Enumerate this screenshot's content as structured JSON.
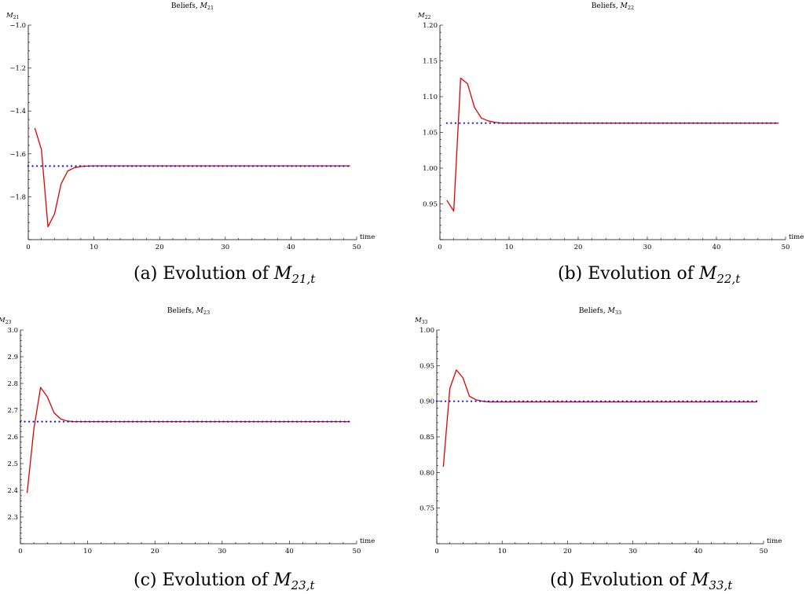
{
  "figure": {
    "panels": [
      {
        "caption_prefix": "(a) Evolution of ",
        "caption_symbol": "M",
        "caption_subscript": "21,t"
      },
      {
        "caption_prefix": "(b) Evolution of ",
        "caption_symbol": "M",
        "caption_subscript": "22,t"
      },
      {
        "caption_prefix": "(c) Evolution of ",
        "caption_symbol": "M",
        "caption_subscript": "23,t"
      },
      {
        "caption_prefix": "(d) Evolution of ",
        "caption_symbol": "M",
        "caption_subscript": "33,t"
      }
    ]
  },
  "colors": {
    "belief_line": "#e00000",
    "reference_line": "#1010e0",
    "axis": "#000000"
  },
  "chart_data": [
    {
      "type": "line",
      "title_prefix": "Beliefs, ",
      "title_symbol": "M",
      "title_subscript": "21",
      "ylabel_symbol": "M",
      "ylabel_subscript": "21",
      "xlabel": "time",
      "xlim": [
        0,
        50
      ],
      "ylim": [
        -2.0,
        -1.0
      ],
      "xticks": [
        0,
        10,
        20,
        30,
        40,
        50
      ],
      "xtick_labels": [
        "0",
        "10",
        "20",
        "30",
        "40",
        "50"
      ],
      "yticks": [
        -1.8,
        -1.6,
        -1.4,
        -1.2,
        -1.0
      ],
      "ytick_labels": [
        "−1.8",
        "−1.6",
        "−1.4",
        "−1.2",
        "−1.0"
      ],
      "series": [
        {
          "style": "solid",
          "color": "#e00000",
          "x": [
            1,
            2,
            3,
            4,
            5,
            6,
            7,
            8,
            9,
            10,
            15,
            20,
            30,
            40,
            49
          ],
          "y": [
            -1.48,
            -1.58,
            -1.94,
            -1.88,
            -1.74,
            -1.68,
            -1.665,
            -1.659,
            -1.657,
            -1.656,
            -1.656,
            -1.656,
            -1.656,
            -1.656,
            -1.656
          ]
        },
        {
          "style": "dotted",
          "color": "#1010e0",
          "x": [
            0,
            49
          ],
          "y": [
            -1.657,
            -1.657
          ]
        }
      ]
    },
    {
      "type": "line",
      "title_prefix": "Beliefs, ",
      "title_symbol": "M",
      "title_subscript": "22",
      "ylabel_symbol": "M",
      "ylabel_subscript": "22",
      "xlabel": "time",
      "xlim": [
        0,
        50
      ],
      "ylim": [
        0.9,
        1.2
      ],
      "xticks": [
        0,
        10,
        20,
        30,
        40,
        50
      ],
      "xtick_labels": [
        "0",
        "10",
        "20",
        "30",
        "40",
        "50"
      ],
      "yticks": [
        0.95,
        1.0,
        1.05,
        1.1,
        1.15,
        1.2
      ],
      "ytick_labels": [
        "0.95",
        "1.00",
        "1.05",
        "1.10",
        "1.15",
        "1.20"
      ],
      "series": [
        {
          "style": "solid",
          "color": "#e00000",
          "x": [
            1,
            2,
            3,
            4,
            5,
            6,
            7,
            8,
            9,
            10,
            20,
            30,
            40,
            49
          ],
          "y": [
            0.955,
            0.94,
            1.126,
            1.118,
            1.085,
            1.07,
            1.066,
            1.064,
            1.063,
            1.063,
            1.063,
            1.063,
            1.063,
            1.063
          ]
        },
        {
          "style": "dotted",
          "color": "#1010e0",
          "x": [
            1,
            49
          ],
          "y": [
            1.063,
            1.063
          ]
        }
      ]
    },
    {
      "type": "line",
      "title_prefix": "Beliefs, ",
      "title_symbol": "M",
      "title_subscript": "23",
      "ylabel_symbol": "M",
      "ylabel_subscript": "23",
      "xlabel": "time",
      "xlim": [
        0,
        50
      ],
      "ylim": [
        2.2,
        3.0
      ],
      "xticks": [
        0,
        10,
        20,
        30,
        40,
        50
      ],
      "xtick_labels": [
        "0",
        "10",
        "20",
        "30",
        "40",
        "50"
      ],
      "yticks": [
        2.3,
        2.4,
        2.5,
        2.6,
        2.7,
        2.8,
        2.9,
        3.0
      ],
      "ytick_labels": [
        "2.3",
        "2.4",
        "2.5",
        "2.6",
        "2.7",
        "2.8",
        "2.9",
        "3.0"
      ],
      "series": [
        {
          "style": "solid",
          "color": "#e00000",
          "x": [
            1,
            2,
            3,
            4,
            5,
            6,
            7,
            8,
            9,
            10,
            20,
            30,
            40,
            49
          ],
          "y": [
            2.39,
            2.63,
            2.785,
            2.75,
            2.69,
            2.667,
            2.659,
            2.657,
            2.657,
            2.657,
            2.657,
            2.657,
            2.657,
            2.657
          ]
        },
        {
          "style": "dotted",
          "color": "#1010e0",
          "x": [
            0,
            49
          ],
          "y": [
            2.657,
            2.657
          ]
        }
      ]
    },
    {
      "type": "line",
      "title_prefix": "Beliefs, ",
      "title_symbol": "M",
      "title_subscript": "33",
      "ylabel_symbol": "M",
      "ylabel_subscript": "33",
      "xlabel": "time",
      "xlim": [
        0,
        50
      ],
      "ylim": [
        0.7,
        1.0
      ],
      "xticks": [
        0,
        10,
        20,
        30,
        40,
        50
      ],
      "xtick_labels": [
        "0",
        "10",
        "20",
        "30",
        "40",
        "50"
      ],
      "yticks": [
        0.75,
        0.8,
        0.85,
        0.9,
        0.95,
        1.0
      ],
      "ytick_labels": [
        "0.75",
        "0.80",
        "0.85",
        "0.90",
        "0.95",
        "1.00"
      ],
      "series": [
        {
          "style": "solid",
          "color": "#e00000",
          "x": [
            1,
            2,
            3,
            4,
            5,
            6,
            7,
            8,
            9,
            10,
            20,
            30,
            40,
            49
          ],
          "y": [
            0.808,
            0.918,
            0.944,
            0.933,
            0.907,
            0.902,
            0.9,
            0.899,
            0.899,
            0.899,
            0.899,
            0.899,
            0.899,
            0.899
          ]
        },
        {
          "style": "dotted",
          "color": "#1010e0",
          "x": [
            0,
            49
          ],
          "y": [
            0.9,
            0.9
          ]
        }
      ]
    }
  ]
}
